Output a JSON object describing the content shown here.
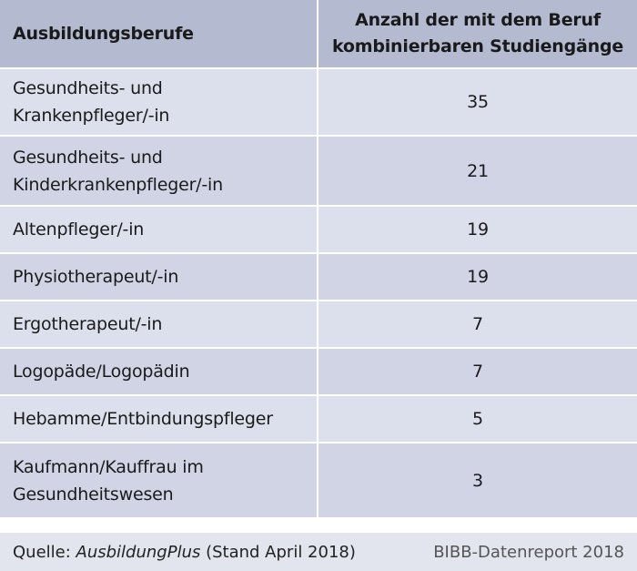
{
  "table": {
    "headers": {
      "col1": "Ausbildungsberufe",
      "col2": "Anzahl der mit dem Beruf kombinierbaren Studiengänge"
    },
    "rows": [
      {
        "beruf_line1": "Gesundheits- und",
        "beruf_line2": "Krankenpfleger/-in",
        "anzahl": "35"
      },
      {
        "beruf_line1": "Gesundheits- und",
        "beruf_line2": "Kinderkrankenpfleger/-in",
        "anzahl": "21"
      },
      {
        "beruf_line1": "Altenpfleger/-in",
        "beruf_line2": "",
        "anzahl": "19"
      },
      {
        "beruf_line1": "Physiotherapeut/-in",
        "beruf_line2": "",
        "anzahl": "19"
      },
      {
        "beruf_line1": "Ergotherapeut/-in",
        "beruf_line2": "",
        "anzahl": "7"
      },
      {
        "beruf_line1": "Logopäde/Logopädin",
        "beruf_line2": "",
        "anzahl": "7"
      },
      {
        "beruf_line1": "Hebamme/Entbindungspfleger",
        "beruf_line2": "",
        "anzahl": "5"
      },
      {
        "beruf_line1": "Kaufmann/Kauffrau im",
        "beruf_line2": "Gesundheitswesen",
        "anzahl": "3"
      }
    ]
  },
  "footer": {
    "source_prefix": "Quelle: ",
    "source_name": "AusbildungPlus",
    "source_suffix": " (Stand April 2018)",
    "publication": "BIBB-Datenreport 2018"
  },
  "colors": {
    "header_bg": "#b4bbd1",
    "row_bg": "#dcdfec",
    "row_alt_bg": "#d0d4e5",
    "footer_bg": "#e3e5ee"
  }
}
